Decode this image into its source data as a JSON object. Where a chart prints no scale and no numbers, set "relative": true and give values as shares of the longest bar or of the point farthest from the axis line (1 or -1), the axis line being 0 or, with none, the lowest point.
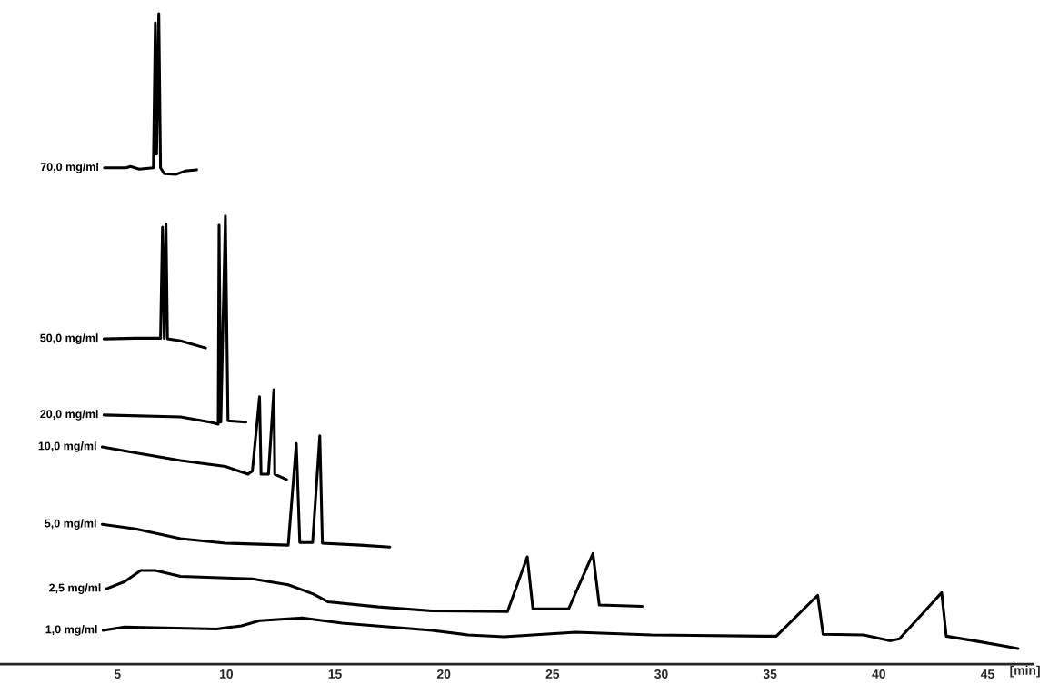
{
  "chart_data": {
    "type": "line",
    "relative": true,
    "xlabel": "[min]",
    "xlim": [
      -0.4,
      47.1
    ],
    "xticks": [
      5,
      10,
      15,
      20,
      25,
      30,
      35,
      40,
      45
    ],
    "grid": false,
    "legend": false,
    "marker": "none",
    "line_style": "solid",
    "series": [
      {
        "name": "70,0 mg/ml",
        "color": "#000000",
        "x": [
          4.4,
          5.4,
          5.6,
          6.0,
          6.65,
          6.74,
          6.8,
          6.9,
          6.98,
          7.15,
          7.7,
          8.1,
          8.64
        ],
        "values": [
          0.763,
          0.763,
          0.765,
          0.761,
          0.763,
          0.986,
          0.784,
          1.0,
          0.763,
          0.754,
          0.753,
          0.758,
          0.76
        ]
      },
      {
        "name": "50,0 mg/ml",
        "color": "#000000",
        "x": [
          4.38,
          5.83,
          6.98,
          7.07,
          7.15,
          7.23,
          7.3,
          7.9,
          9.05
        ],
        "values": [
          0.5,
          0.501,
          0.501,
          0.672,
          0.501,
          0.677,
          0.5,
          0.497,
          0.486
        ]
      },
      {
        "name": "20,0 mg/ml",
        "color": "#000000",
        "x": [
          4.38,
          7.9,
          9.26,
          9.63,
          9.67,
          9.75,
          9.96,
          10.08,
          10.9
        ],
        "values": [
          0.383,
          0.38,
          0.372,
          0.369,
          0.675,
          0.372,
          0.689,
          0.374,
          0.372
        ]
      },
      {
        "name": "10,0 mg/ml",
        "color": "#000000",
        "x": [
          4.3,
          5.83,
          7.9,
          9.96,
          11.0,
          11.2,
          11.53,
          11.6,
          11.94,
          12.19,
          12.23,
          12.77
        ],
        "values": [
          0.334,
          0.325,
          0.313,
          0.304,
          0.292,
          0.297,
          0.411,
          0.292,
          0.292,
          0.422,
          0.292,
          0.284
        ]
      },
      {
        "name": "5,0 mg/ml",
        "color": "#000000",
        "x": [
          4.3,
          5.83,
          7.9,
          9.96,
          12.85,
          13.22,
          13.38,
          13.97,
          14.3,
          14.42,
          16.16,
          17.52
        ],
        "values": [
          0.215,
          0.208,
          0.193,
          0.186,
          0.183,
          0.339,
          0.187,
          0.187,
          0.351,
          0.186,
          0.183,
          0.18
        ]
      },
      {
        "name": "2,5 mg/ml",
        "color": "#000000",
        "x": [
          4.5,
          5.33,
          6.07,
          6.74,
          7.9,
          11.2,
          12.85,
          14.0,
          14.67,
          17.0,
          19.46,
          22.93,
          23.84,
          24.1,
          25.74,
          26.86,
          27.15,
          29.13
        ],
        "values": [
          0.116,
          0.127,
          0.144,
          0.144,
          0.135,
          0.131,
          0.122,
          0.108,
          0.096,
          0.088,
          0.082,
          0.081,
          0.165,
          0.085,
          0.085,
          0.17,
          0.091,
          0.089
        ]
      },
      {
        "name": "1,0 mg/ml",
        "color": "#000000",
        "x": [
          4.34,
          5.33,
          9.55,
          10.7,
          11.53,
          13.5,
          15.33,
          19.46,
          21.1,
          22.77,
          26.07,
          29.55,
          34.75,
          35.29,
          37.19,
          37.44,
          39.3,
          40.54,
          40.95,
          42.89,
          43.1,
          44.38,
          45.6,
          46.4
        ],
        "values": [
          0.052,
          0.057,
          0.054,
          0.059,
          0.067,
          0.071,
          0.063,
          0.052,
          0.045,
          0.042,
          0.049,
          0.045,
          0.043,
          0.043,
          0.106,
          0.046,
          0.045,
          0.036,
          0.039,
          0.11,
          0.043,
          0.036,
          0.029,
          0.024
        ]
      }
    ]
  }
}
